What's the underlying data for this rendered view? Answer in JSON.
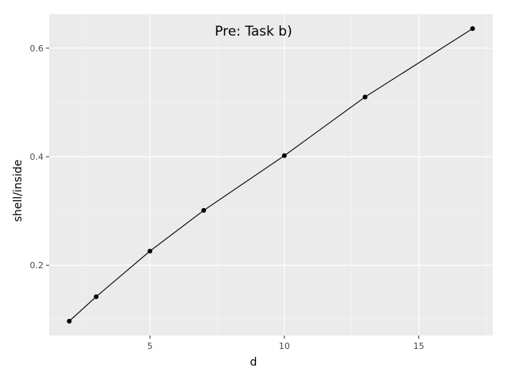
{
  "chart_data": {
    "type": "line",
    "title": "Pre: Task b)",
    "xlabel": "d",
    "ylabel": "shell/inside",
    "x": [
      2,
      3,
      5,
      7,
      10,
      13,
      17
    ],
    "y": [
      0.097,
      0.142,
      0.226,
      0.301,
      0.402,
      0.51,
      0.636
    ],
    "xlim": [
      1.25,
      17.75
    ],
    "ylim": [
      0.0705,
      0.6625
    ],
    "x_ticks": [
      5,
      10,
      15
    ],
    "x_tick_labels": [
      "5",
      "10",
      "15"
    ],
    "y_ticks": [
      0.2,
      0.4,
      0.6
    ],
    "y_tick_labels": [
      "0.2",
      "0.4",
      "0.6"
    ],
    "x_minor_ticks": [
      2.5,
      7.5,
      12.5,
      17.5
    ],
    "y_minor_ticks": [
      0.1,
      0.3,
      0.5
    ],
    "grid": true,
    "legend": "none",
    "colors": {
      "panel_background": "#ebebeb",
      "grid_major": "#ffffff",
      "grid_minor": "#f5f5f5",
      "line": "#000000",
      "point": "#000000",
      "tick_label": "#4d4d4d",
      "axis_title": "#000000"
    }
  }
}
